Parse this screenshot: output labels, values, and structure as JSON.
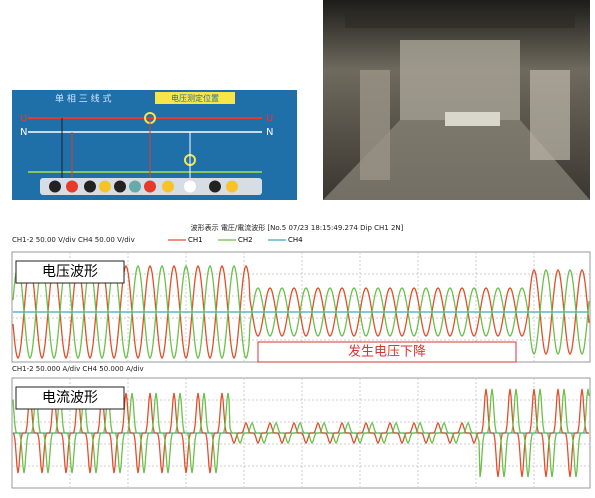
{
  "diagram": {
    "title": "单 相 三 线 式",
    "badge": "电压测定位置",
    "labels": [
      "U",
      "N",
      "U",
      "N"
    ]
  },
  "waveform": {
    "header": "波形表示 電圧/電流波形 [No.5 07/23 18:15:49.274 Dip CH1 2N]",
    "voltage": {
      "scale": "CH1-2 50.00 V/div CH4 50.00 V/div",
      "legend": [
        "CH1",
        "CH2",
        "CH4"
      ],
      "label": "电压波形",
      "annotation": "发生电压下降"
    },
    "current": {
      "scale": "CH1-2 50.000 A/div CH4 50.000 A/div",
      "label": "电流波形"
    }
  }
}
